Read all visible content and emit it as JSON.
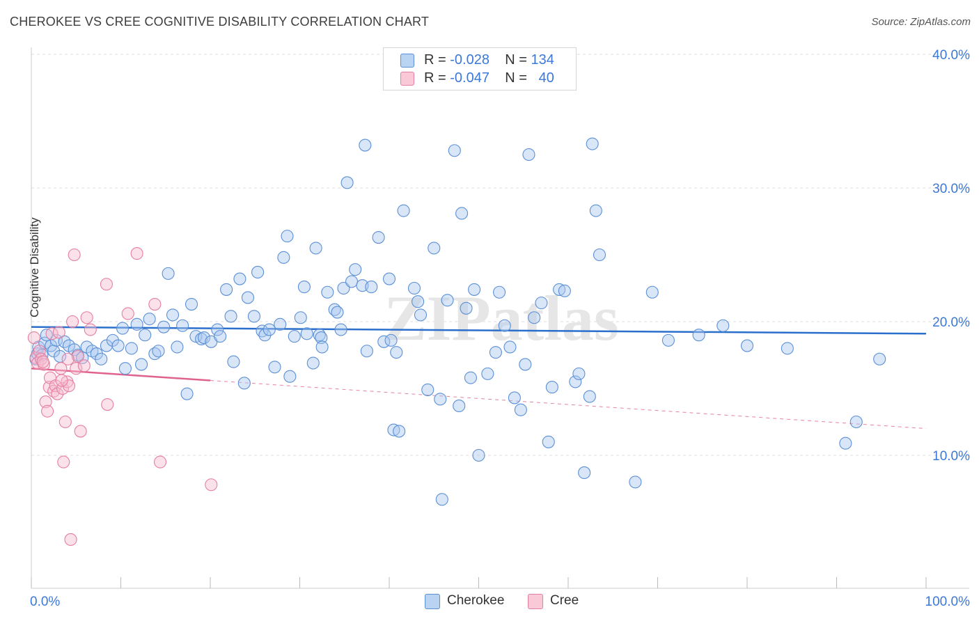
{
  "title": "CHEROKEE VS CREE COGNITIVE DISABILITY CORRELATION CHART",
  "source": "Source: ZipAtlas.com",
  "watermark": "ZIPatlas",
  "legend_top": {
    "rows": [
      {
        "r_label": "R = ",
        "r_value": "-0.028",
        "n_label": "N = ",
        "n_value": "134"
      },
      {
        "r_label": "R = ",
        "r_value": "-0.047",
        "n_label": "N = ",
        "n_value": "40"
      }
    ]
  },
  "legend_bottom": [
    "Cherokee",
    "Cree"
  ],
  "colors": {
    "cherokee_fill": "#a9c8f0",
    "cherokee_stroke": "#5b8fd6",
    "cherokee_line": "#2a6fcc",
    "cree_fill": "#f7bcd0",
    "cree_stroke": "#e57fa0",
    "cree_line": "#e0628e",
    "tick_label": "#3b78d8",
    "grid": "#dddddd"
  },
  "chart_data": {
    "type": "scatter",
    "title": "CHEROKEE VS CREE COGNITIVE DISABILITY CORRELATION CHART",
    "xlabel": "",
    "ylabel": "Cognitive Disability",
    "xlim": [
      0,
      100
    ],
    "ylim": [
      0,
      42
    ],
    "x_tick_labels": [
      "0.0%",
      "100.0%"
    ],
    "y_ticks": [
      10,
      20,
      30,
      40
    ],
    "y_tick_labels": [
      "10.0%",
      "20.0%",
      "30.0%",
      "40.0%"
    ],
    "grid": true,
    "legend_position": "top-center",
    "series": [
      {
        "name": "Cherokee",
        "r": -0.028,
        "n": 134,
        "trend": {
          "x": [
            0,
            100
          ],
          "y": [
            19.6,
            19.1
          ]
        },
        "points": [
          [
            0.5,
            17.2
          ],
          [
            0.7,
            17.6
          ],
          [
            0.8,
            18.1
          ],
          [
            1.2,
            17.5
          ],
          [
            1.5,
            18.4
          ],
          [
            1.7,
            19.0
          ],
          [
            2.2,
            18.2
          ],
          [
            2.5,
            17.8
          ],
          [
            2.8,
            18.6
          ],
          [
            3.2,
            17.4
          ],
          [
            3.7,
            18.5
          ],
          [
            4.2,
            18.2
          ],
          [
            4.8,
            17.9
          ],
          [
            5.2,
            17.5
          ],
          [
            5.7,
            17.3
          ],
          [
            6.2,
            18.1
          ],
          [
            6.8,
            17.8
          ],
          [
            7.3,
            17.6
          ],
          [
            7.8,
            17.2
          ],
          [
            8.4,
            18.2
          ],
          [
            9.1,
            18.6
          ],
          [
            9.7,
            18.2
          ],
          [
            10.2,
            19.5
          ],
          [
            10.5,
            16.5
          ],
          [
            11.2,
            18.0
          ],
          [
            11.8,
            19.8
          ],
          [
            12.3,
            16.8
          ],
          [
            12.7,
            19.0
          ],
          [
            13.2,
            20.2
          ],
          [
            13.8,
            17.6
          ],
          [
            14.2,
            17.8
          ],
          [
            14.8,
            19.6
          ],
          [
            15.3,
            23.6
          ],
          [
            15.8,
            20.5
          ],
          [
            16.3,
            18.1
          ],
          [
            16.9,
            19.7
          ],
          [
            17.4,
            14.6
          ],
          [
            17.9,
            21.3
          ],
          [
            18.4,
            18.9
          ],
          [
            19.0,
            18.7
          ],
          [
            19.3,
            18.8
          ],
          [
            20.1,
            18.5
          ],
          [
            20.8,
            19.4
          ],
          [
            21.1,
            18.9
          ],
          [
            21.8,
            22.4
          ],
          [
            22.3,
            20.4
          ],
          [
            22.6,
            17.0
          ],
          [
            23.3,
            23.2
          ],
          [
            23.8,
            15.4
          ],
          [
            24.2,
            21.8
          ],
          [
            24.9,
            20.4
          ],
          [
            25.3,
            23.7
          ],
          [
            25.8,
            19.3
          ],
          [
            26.1,
            19.0
          ],
          [
            26.6,
            19.4
          ],
          [
            27.2,
            16.6
          ],
          [
            27.8,
            19.8
          ],
          [
            28.2,
            24.8
          ],
          [
            28.6,
            26.4
          ],
          [
            28.9,
            15.9
          ],
          [
            29.4,
            18.9
          ],
          [
            30.1,
            20.3
          ],
          [
            30.5,
            22.6
          ],
          [
            30.8,
            19.1
          ],
          [
            31.5,
            16.9
          ],
          [
            31.8,
            25.5
          ],
          [
            32.2,
            19.0
          ],
          [
            32.4,
            18.8
          ],
          [
            32.5,
            18.1
          ],
          [
            33.1,
            22.2
          ],
          [
            33.9,
            20.9
          ],
          [
            34.2,
            20.7
          ],
          [
            34.6,
            19.4
          ],
          [
            34.9,
            22.5
          ],
          [
            35.3,
            30.4
          ],
          [
            35.8,
            23.0
          ],
          [
            36.2,
            23.9
          ],
          [
            37.0,
            22.7
          ],
          [
            37.3,
            33.2
          ],
          [
            37.5,
            17.8
          ],
          [
            38.0,
            22.6
          ],
          [
            38.8,
            26.3
          ],
          [
            39.4,
            18.5
          ],
          [
            40.0,
            23.2
          ],
          [
            40.2,
            18.6
          ],
          [
            40.5,
            11.9
          ],
          [
            40.8,
            17.7
          ],
          [
            41.1,
            11.8
          ],
          [
            41.6,
            28.3
          ],
          [
            42.8,
            22.5
          ],
          [
            43.2,
            21.5
          ],
          [
            43.5,
            20.5
          ],
          [
            44.3,
            14.9
          ],
          [
            45.0,
            25.5
          ],
          [
            45.7,
            14.2
          ],
          [
            45.9,
            6.7
          ],
          [
            46.5,
            21.6
          ],
          [
            47.3,
            32.8
          ],
          [
            47.8,
            13.7
          ],
          [
            48.1,
            28.1
          ],
          [
            48.6,
            21.0
          ],
          [
            49.1,
            15.8
          ],
          [
            49.5,
            22.4
          ],
          [
            50.0,
            10.0
          ],
          [
            51.0,
            16.1
          ],
          [
            51.9,
            17.7
          ],
          [
            52.3,
            22.2
          ],
          [
            52.9,
            19.7
          ],
          [
            53.5,
            18.1
          ],
          [
            54.0,
            14.3
          ],
          [
            54.7,
            13.4
          ],
          [
            55.2,
            16.8
          ],
          [
            55.6,
            32.5
          ],
          [
            56.2,
            20.3
          ],
          [
            57.0,
            21.4
          ],
          [
            57.8,
            11.0
          ],
          [
            58.2,
            15.1
          ],
          [
            59.0,
            22.4
          ],
          [
            59.6,
            22.3
          ],
          [
            60.8,
            15.5
          ],
          [
            61.2,
            16.1
          ],
          [
            61.8,
            8.7
          ],
          [
            62.4,
            14.4
          ],
          [
            62.7,
            33.3
          ],
          [
            63.1,
            28.3
          ],
          [
            63.5,
            25.0
          ],
          [
            67.5,
            8.0
          ],
          [
            69.4,
            22.2
          ],
          [
            71.2,
            18.6
          ],
          [
            74.6,
            19.0
          ],
          [
            77.3,
            19.7
          ],
          [
            80.0,
            18.2
          ],
          [
            84.5,
            18.0
          ],
          [
            91.0,
            10.9
          ],
          [
            92.2,
            12.5
          ],
          [
            94.8,
            17.2
          ]
        ]
      },
      {
        "name": "Cree",
        "r": -0.047,
        "n": 40,
        "trend": {
          "x": [
            0,
            20
          ],
          "y": [
            16.5,
            15.6
          ]
        },
        "trend_extension": {
          "x": [
            20,
            100
          ],
          "y": [
            15.6,
            12.0
          ]
        },
        "points": [
          [
            0.3,
            18.8
          ],
          [
            0.5,
            17.3
          ],
          [
            0.7,
            16.9
          ],
          [
            0.9,
            17.8
          ],
          [
            1.1,
            17.2
          ],
          [
            1.4,
            16.8
          ],
          [
            1.6,
            14.0
          ],
          [
            1.8,
            13.3
          ],
          [
            2.0,
            15.1
          ],
          [
            2.1,
            15.8
          ],
          [
            2.3,
            19.1
          ],
          [
            2.5,
            14.8
          ],
          [
            2.7,
            15.2
          ],
          [
            2.9,
            14.6
          ],
          [
            3.1,
            19.2
          ],
          [
            3.3,
            16.5
          ],
          [
            3.5,
            15.0
          ],
          [
            3.6,
            9.5
          ],
          [
            3.8,
            12.5
          ],
          [
            4.0,
            15.5
          ],
          [
            4.2,
            15.2
          ],
          [
            4.4,
            3.7
          ],
          [
            4.6,
            20.0
          ],
          [
            4.8,
            25.0
          ],
          [
            5.0,
            16.5
          ],
          [
            5.2,
            17.4
          ],
          [
            5.5,
            11.8
          ],
          [
            5.9,
            16.7
          ],
          [
            6.2,
            20.3
          ],
          [
            6.6,
            19.4
          ],
          [
            8.4,
            22.8
          ],
          [
            8.5,
            13.8
          ],
          [
            10.8,
            20.6
          ],
          [
            11.8,
            25.1
          ],
          [
            13.8,
            21.3
          ],
          [
            14.4,
            9.5
          ],
          [
            20.1,
            7.8
          ],
          [
            1.3,
            17.0
          ],
          [
            3.4,
            15.6
          ],
          [
            4.1,
            17.2
          ]
        ]
      }
    ]
  }
}
